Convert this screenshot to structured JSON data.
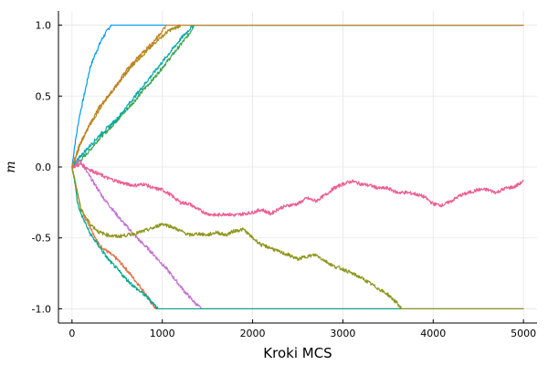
{
  "chart_data": {
    "type": "line",
    "title": "",
    "xlabel": "Kroki MCS",
    "ylabel": "m",
    "xlim": [
      -150,
      5150
    ],
    "ylim": [
      -1.1,
      1.1
    ],
    "grid": true,
    "legend": "none",
    "x_ticks": [
      0,
      1000,
      2000,
      3000,
      4000,
      5000
    ],
    "x_tick_labels": [
      "0",
      "1000",
      "2000",
      "3000",
      "4000",
      "5000"
    ],
    "y_ticks": [
      1.0,
      0.5,
      0.0,
      -0.5,
      -1.0
    ],
    "y_tick_labels": [
      "1.0",
      "0.5",
      "0.0",
      "-0.5",
      "-1.0"
    ],
    "series": [
      {
        "color": "#009AFA",
        "x": [
          0,
          30,
          80,
          150,
          200,
          260,
          330,
          380,
          430,
          5000
        ],
        "y": [
          0.0,
          0.15,
          0.35,
          0.55,
          0.7,
          0.8,
          0.9,
          0.95,
          1.0,
          1.0
        ]
      },
      {
        "color": "#E36F47",
        "x": [
          0,
          50,
          100,
          200,
          300,
          400,
          500,
          600,
          700,
          800,
          870,
          930,
          5000
        ],
        "y": [
          0.0,
          -0.15,
          -0.3,
          -0.42,
          -0.55,
          -0.6,
          -0.65,
          -0.72,
          -0.8,
          -0.88,
          -0.95,
          -1.0,
          -1.0
        ]
      },
      {
        "color": "#3EA44E",
        "x": [
          0,
          100,
          200,
          300,
          400,
          500,
          600,
          700,
          800,
          900,
          1000,
          1100,
          1200,
          1300,
          1350,
          5000
        ],
        "y": [
          0.0,
          0.05,
          0.12,
          0.2,
          0.26,
          0.33,
          0.4,
          0.47,
          0.55,
          0.62,
          0.7,
          0.78,
          0.86,
          0.94,
          1.0,
          1.0
        ]
      },
      {
        "color": "#C371D2",
        "x": [
          0,
          80,
          150,
          250,
          350,
          450,
          550,
          650,
          750,
          850,
          950,
          1050,
          1150,
          1250,
          1350,
          1430,
          5000
        ],
        "y": [
          0.0,
          0.05,
          -0.02,
          -0.12,
          -0.22,
          -0.3,
          -0.38,
          -0.45,
          -0.52,
          -0.58,
          -0.65,
          -0.72,
          -0.8,
          -0.88,
          -0.95,
          -1.0,
          -1.0
        ]
      },
      {
        "color": "#AC8D18",
        "x": [
          0,
          80,
          200,
          300,
          400,
          500,
          600,
          700,
          800,
          900,
          950,
          1000,
          1050,
          1100,
          1150,
          1200,
          1250,
          1300,
          5000
        ],
        "y": [
          0.0,
          0.15,
          0.3,
          0.42,
          0.5,
          0.58,
          0.66,
          0.74,
          0.8,
          0.86,
          0.9,
          0.92,
          0.95,
          0.97,
          0.98,
          1.0,
          1.0,
          1.0,
          1.0
        ]
      },
      {
        "color": "#00A9AD",
        "x": [
          0,
          100,
          200,
          300,
          400,
          500,
          600,
          700,
          800,
          900,
          1000,
          1100,
          1200,
          1300,
          1350,
          5000
        ],
        "y": [
          0.0,
          0.08,
          0.15,
          0.22,
          0.28,
          0.34,
          0.42,
          0.5,
          0.58,
          0.66,
          0.74,
          0.82,
          0.9,
          0.97,
          1.0,
          1.0
        ]
      },
      {
        "color": "#ED5E93",
        "x": [
          0,
          100,
          200,
          300,
          400,
          500,
          600,
          700,
          800,
          900,
          1000,
          1100,
          1200,
          1300,
          1400,
          1500,
          1600,
          1700,
          1800,
          1900,
          2000,
          2100,
          2200,
          2300,
          2400,
          2500,
          2600,
          2700,
          2800,
          2900,
          3000,
          3100,
          3200,
          3300,
          3400,
          3500,
          3600,
          3700,
          3800,
          3900,
          4000,
          4100,
          4200,
          4300,
          4400,
          4500,
          4600,
          4700,
          4800,
          4900,
          5000
        ],
        "y": [
          0.0,
          0.02,
          -0.02,
          -0.05,
          -0.08,
          -0.1,
          -0.12,
          -0.13,
          -0.12,
          -0.15,
          -0.16,
          -0.2,
          -0.25,
          -0.26,
          -0.3,
          -0.33,
          -0.34,
          -0.33,
          -0.34,
          -0.33,
          -0.32,
          -0.3,
          -0.33,
          -0.29,
          -0.27,
          -0.26,
          -0.22,
          -0.24,
          -0.2,
          -0.15,
          -0.12,
          -0.1,
          -0.12,
          -0.13,
          -0.15,
          -0.15,
          -0.18,
          -0.18,
          -0.19,
          -0.21,
          -0.26,
          -0.27,
          -0.24,
          -0.2,
          -0.18,
          -0.16,
          -0.16,
          -0.18,
          -0.15,
          -0.14,
          -0.1
        ]
      },
      {
        "color": "#C68125",
        "x": [
          0,
          50,
          100,
          200,
          300,
          400,
          500,
          600,
          700,
          800,
          900,
          1000,
          1050,
          5000
        ],
        "y": [
          0.0,
          0.08,
          0.18,
          0.3,
          0.4,
          0.5,
          0.58,
          0.68,
          0.75,
          0.82,
          0.88,
          0.96,
          1.0,
          1.0
        ]
      },
      {
        "color": "#00A98D",
        "x": [
          0,
          30,
          60,
          100,
          150,
          200,
          300,
          400,
          500,
          600,
          700,
          800,
          900,
          950,
          5000
        ],
        "y": [
          0.0,
          -0.1,
          -0.25,
          -0.33,
          -0.4,
          -0.47,
          -0.56,
          -0.65,
          -0.72,
          -0.79,
          -0.85,
          -0.9,
          -0.96,
          -1.0,
          -1.0
        ]
      },
      {
        "color": "#8E971E",
        "x": [
          0,
          50,
          100,
          200,
          300,
          400,
          500,
          600,
          700,
          800,
          900,
          1000,
          1100,
          1200,
          1300,
          1400,
          1500,
          1600,
          1700,
          1800,
          1900,
          2000,
          2100,
          2200,
          2300,
          2400,
          2500,
          2600,
          2700,
          2800,
          2900,
          3000,
          3100,
          3200,
          3300,
          3400,
          3500,
          3600,
          3650,
          5000
        ],
        "y": [
          0.0,
          -0.15,
          -0.3,
          -0.4,
          -0.46,
          -0.48,
          -0.49,
          -0.48,
          -0.47,
          -0.45,
          -0.43,
          -0.4,
          -0.42,
          -0.45,
          -0.48,
          -0.47,
          -0.48,
          -0.46,
          -0.48,
          -0.45,
          -0.44,
          -0.5,
          -0.55,
          -0.57,
          -0.6,
          -0.62,
          -0.65,
          -0.63,
          -0.62,
          -0.66,
          -0.7,
          -0.72,
          -0.75,
          -0.78,
          -0.82,
          -0.86,
          -0.9,
          -0.96,
          -1.0,
          -1.0
        ]
      }
    ]
  }
}
